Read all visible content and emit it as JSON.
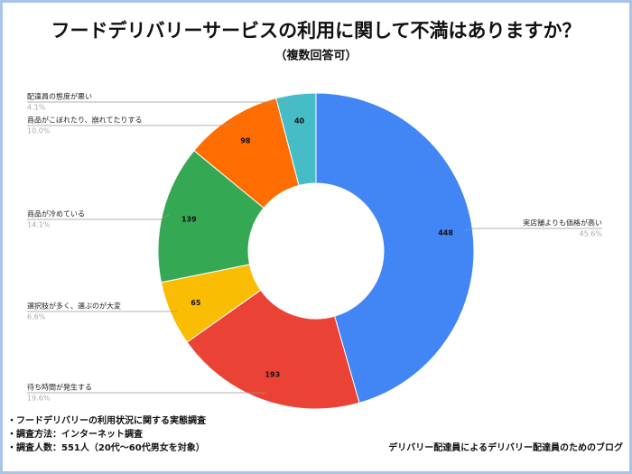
{
  "chart_data": {
    "type": "donut",
    "title": "フードデリバリーサービスの利用に関して不満はありますか？",
    "subtitle": "（複数回答可）",
    "categories": [
      "実店舗よりも価格が高い",
      "待ち時間が発生する",
      "選択肢が多く、選ぶのが大変",
      "商品が冷めている",
      "商品がこぼれたり、崩れてたりする",
      "配達員の態度が悪い"
    ],
    "values": [
      448,
      193,
      65,
      139,
      98,
      40
    ],
    "percent_labels": [
      "45.6%",
      "19.6%",
      "6.6%",
      "14.1%",
      "10.0%",
      "4.1%"
    ],
    "colors": [
      "#4285f4",
      "#ea4335",
      "#fbbc04",
      "#34a853",
      "#ff6d01",
      "#46bdc6"
    ],
    "notes": [
      "・フードデリバリーの利用状況に関する実態調査",
      "・調査方法：インターネット調査",
      "・調査人数：551人（20代〜60代男女を対象）"
    ],
    "credit": "デリバリー配達員によるデリバリー配達員のためのブログ"
  }
}
